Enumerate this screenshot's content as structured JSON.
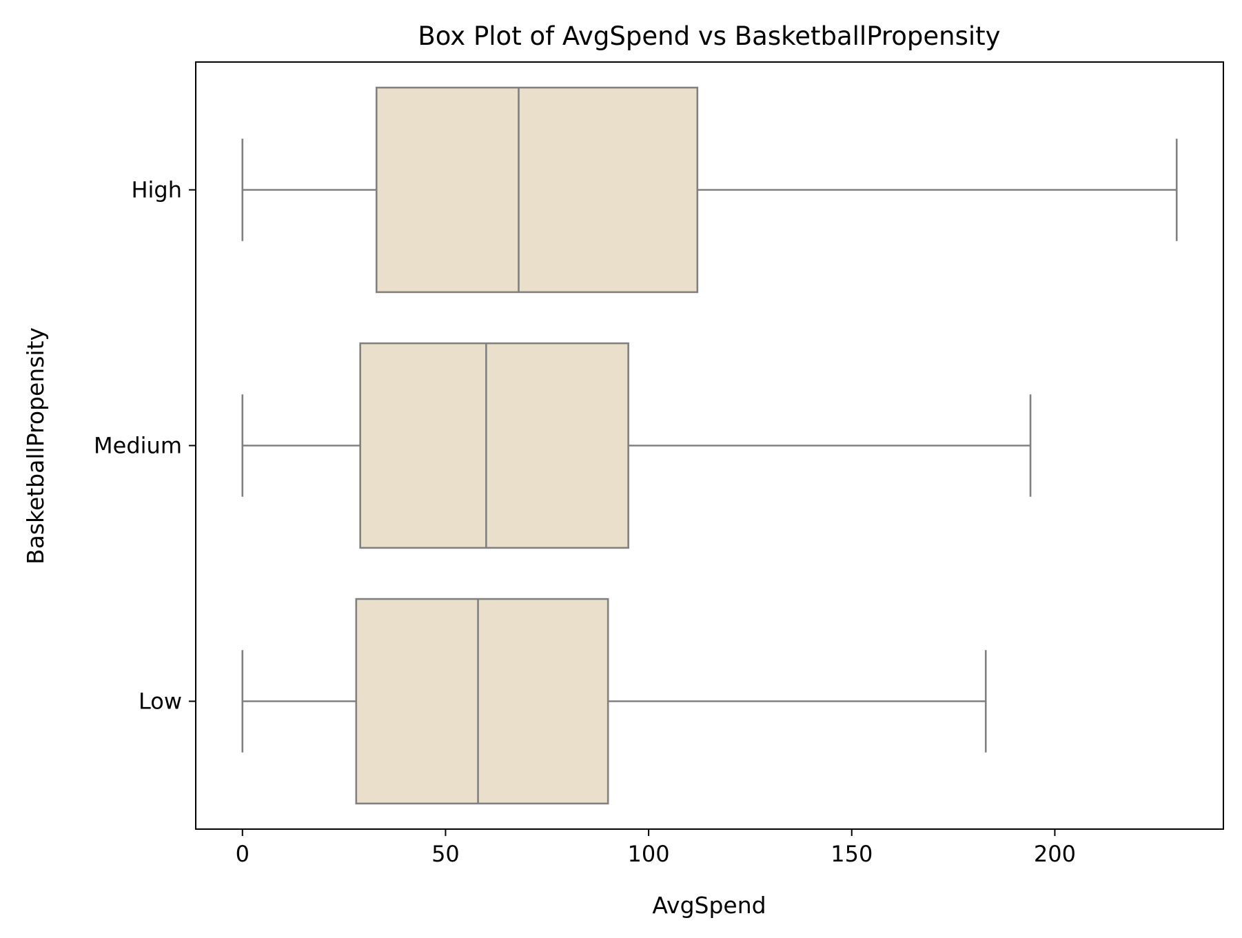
{
  "chart_data": {
    "type": "box",
    "orientation": "horizontal",
    "title": "Box Plot of AvgSpend vs BasketballPropensity",
    "xlabel": "AvgSpend",
    "ylabel": "BasketballPropensity",
    "xlim": [
      -11.5,
      241.5
    ],
    "xticks": [
      0,
      50,
      100,
      150,
      200
    ],
    "categories": [
      "High",
      "Medium",
      "Low"
    ],
    "boxes": [
      {
        "category": "High",
        "whisker_low": 0,
        "q1": 33,
        "median": 68,
        "q3": 112,
        "whisker_high": 230
      },
      {
        "category": "Medium",
        "whisker_low": 0,
        "q1": 29,
        "median": 60,
        "q3": 95,
        "whisker_high": 194
      },
      {
        "category": "Low",
        "whisker_low": 0,
        "q1": 28,
        "median": 58,
        "q3": 90,
        "whisker_high": 183
      }
    ],
    "grid": false,
    "box_fill": "#eadfca",
    "line_color": "#808080"
  }
}
